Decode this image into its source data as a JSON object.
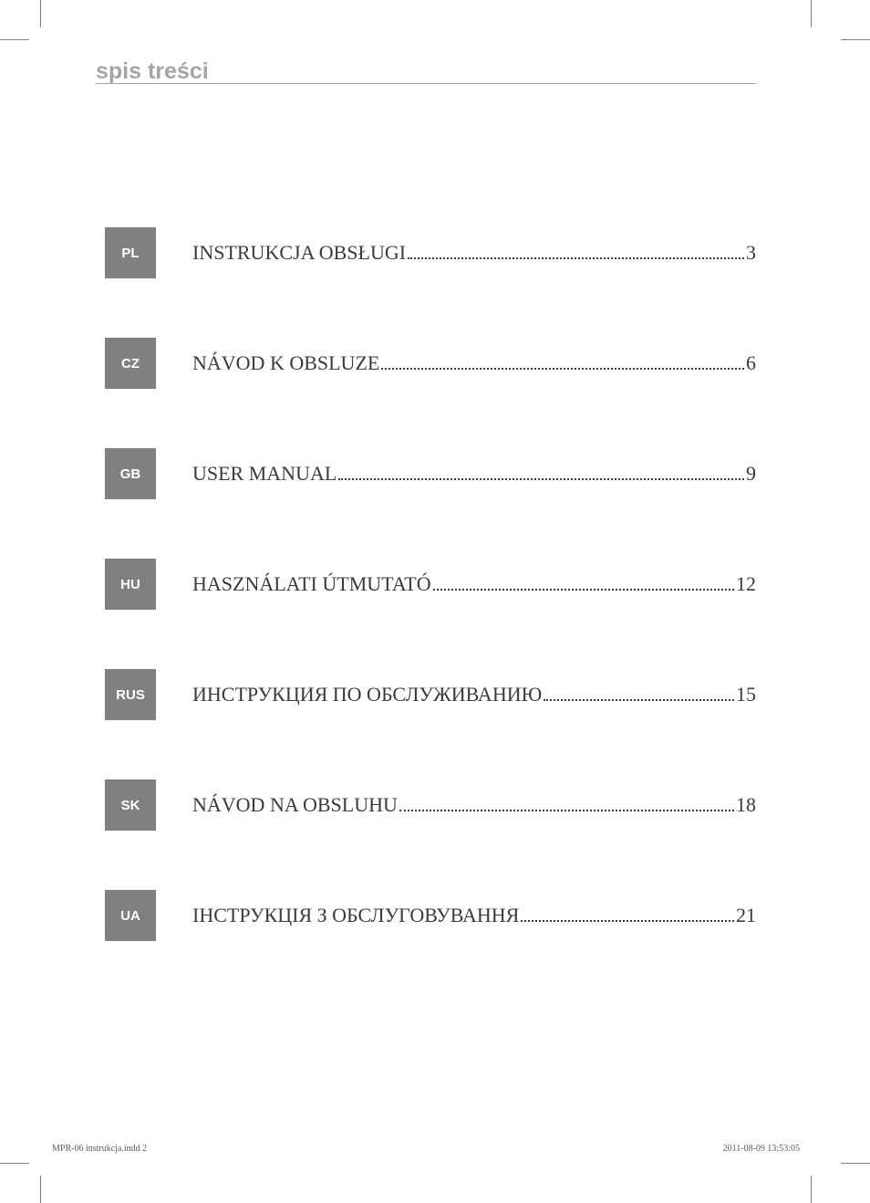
{
  "page": {
    "header_title": "spis treści",
    "footer_left": "MPR-06 instrukcja.indd   2",
    "footer_right": "2011-08-09   13:53:05"
  },
  "colors": {
    "badge_bg": "#808080",
    "badge_text": "#ffffff",
    "header_text": "#a5a5a5",
    "rule": "#a5a5a5",
    "toc_text": "#3a3a3a",
    "background": "#ffffff"
  },
  "toc": [
    {
      "code": "PL",
      "title": "INSTRUKCJA OBSŁUGI",
      "page": "3"
    },
    {
      "code": "CZ",
      "title": "NÁVOD K OBSLUZE",
      "page": "6"
    },
    {
      "code": "GB",
      "title": "USER MANUAL",
      "page": "9"
    },
    {
      "code": "HU",
      "title": "HASZNÁLATI ÚTMUTATÓ",
      "page": "12"
    },
    {
      "code": "RUS",
      "title": "ИНСТРУКЦИЯ ПО ОБСЛУЖИВАНИЮ",
      "page": "15"
    },
    {
      "code": "SK",
      "title": "NÁVOD NA OBSLUHU",
      "page": "18"
    },
    {
      "code": "UA",
      "title": "ІНСТРУКЦІЯ З ОБСЛУГОВУВАННЯ",
      "page": "21"
    }
  ]
}
